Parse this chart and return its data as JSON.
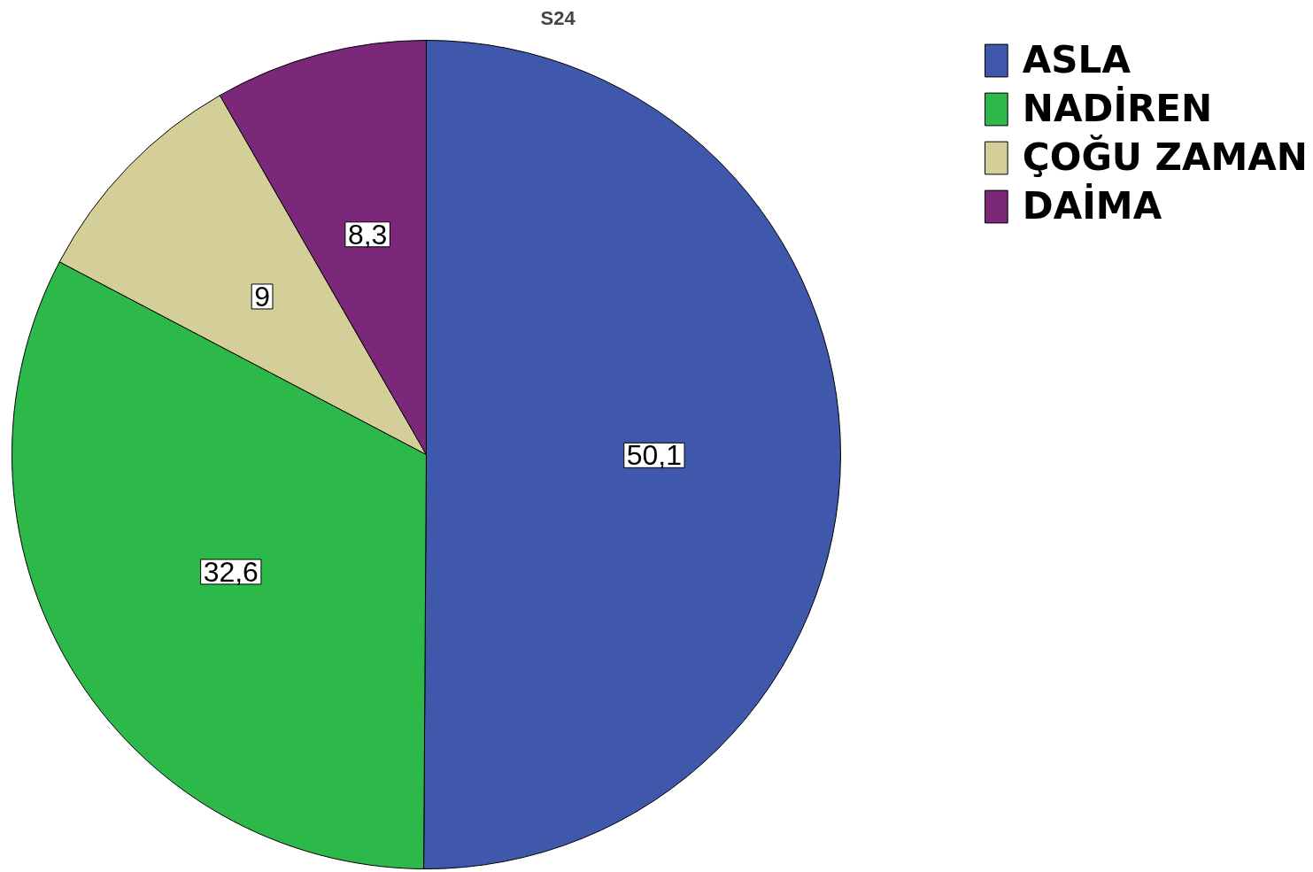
{
  "chart_data": {
    "type": "pie",
    "title": "S24",
    "categories": [
      "ASLA",
      "NADİREN",
      "ÇOĞU ZAMAN",
      "DAİMA"
    ],
    "values": [
      50.1,
      32.6,
      9,
      8.3
    ],
    "colors": [
      "#3f58ab",
      "#2db84a",
      "#d4cf98",
      "#7b287b"
    ],
    "value_labels": [
      "50,1",
      "32,6",
      "9",
      "8,3"
    ],
    "legend": "top right"
  }
}
